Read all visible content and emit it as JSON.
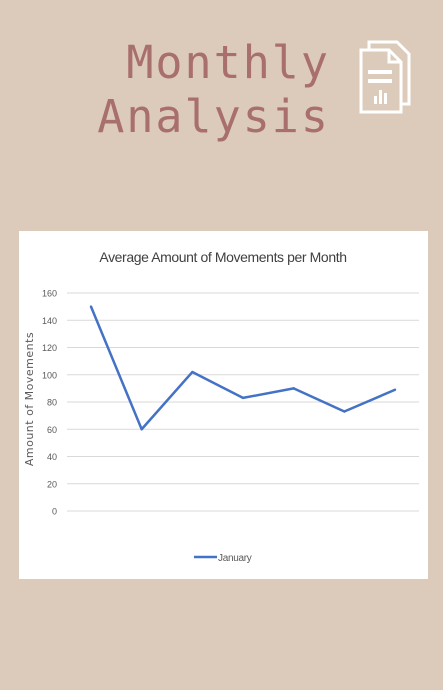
{
  "page": {
    "title_line1": "Monthly",
    "title_line2": "Analysis",
    "icon": "document-chart-icon",
    "colors": {
      "background": "#dccbbb",
      "title": "#a86f6c",
      "line": "#4472c4"
    }
  },
  "chart_data": {
    "type": "line",
    "title": "Average Amount of Movements per Month",
    "xlabel": "",
    "ylabel": "Amount of Movements",
    "ylim": [
      0,
      160
    ],
    "yticks": [
      0,
      20,
      40,
      60,
      80,
      100,
      120,
      140,
      160
    ],
    "x": [
      1,
      2,
      3,
      4,
      5,
      6,
      7
    ],
    "series": [
      {
        "name": "January",
        "values": [
          150,
          60,
          102,
          83,
          90,
          73,
          89
        ],
        "color": "#4472c4"
      }
    ],
    "grid": true,
    "legend": "bottom"
  }
}
